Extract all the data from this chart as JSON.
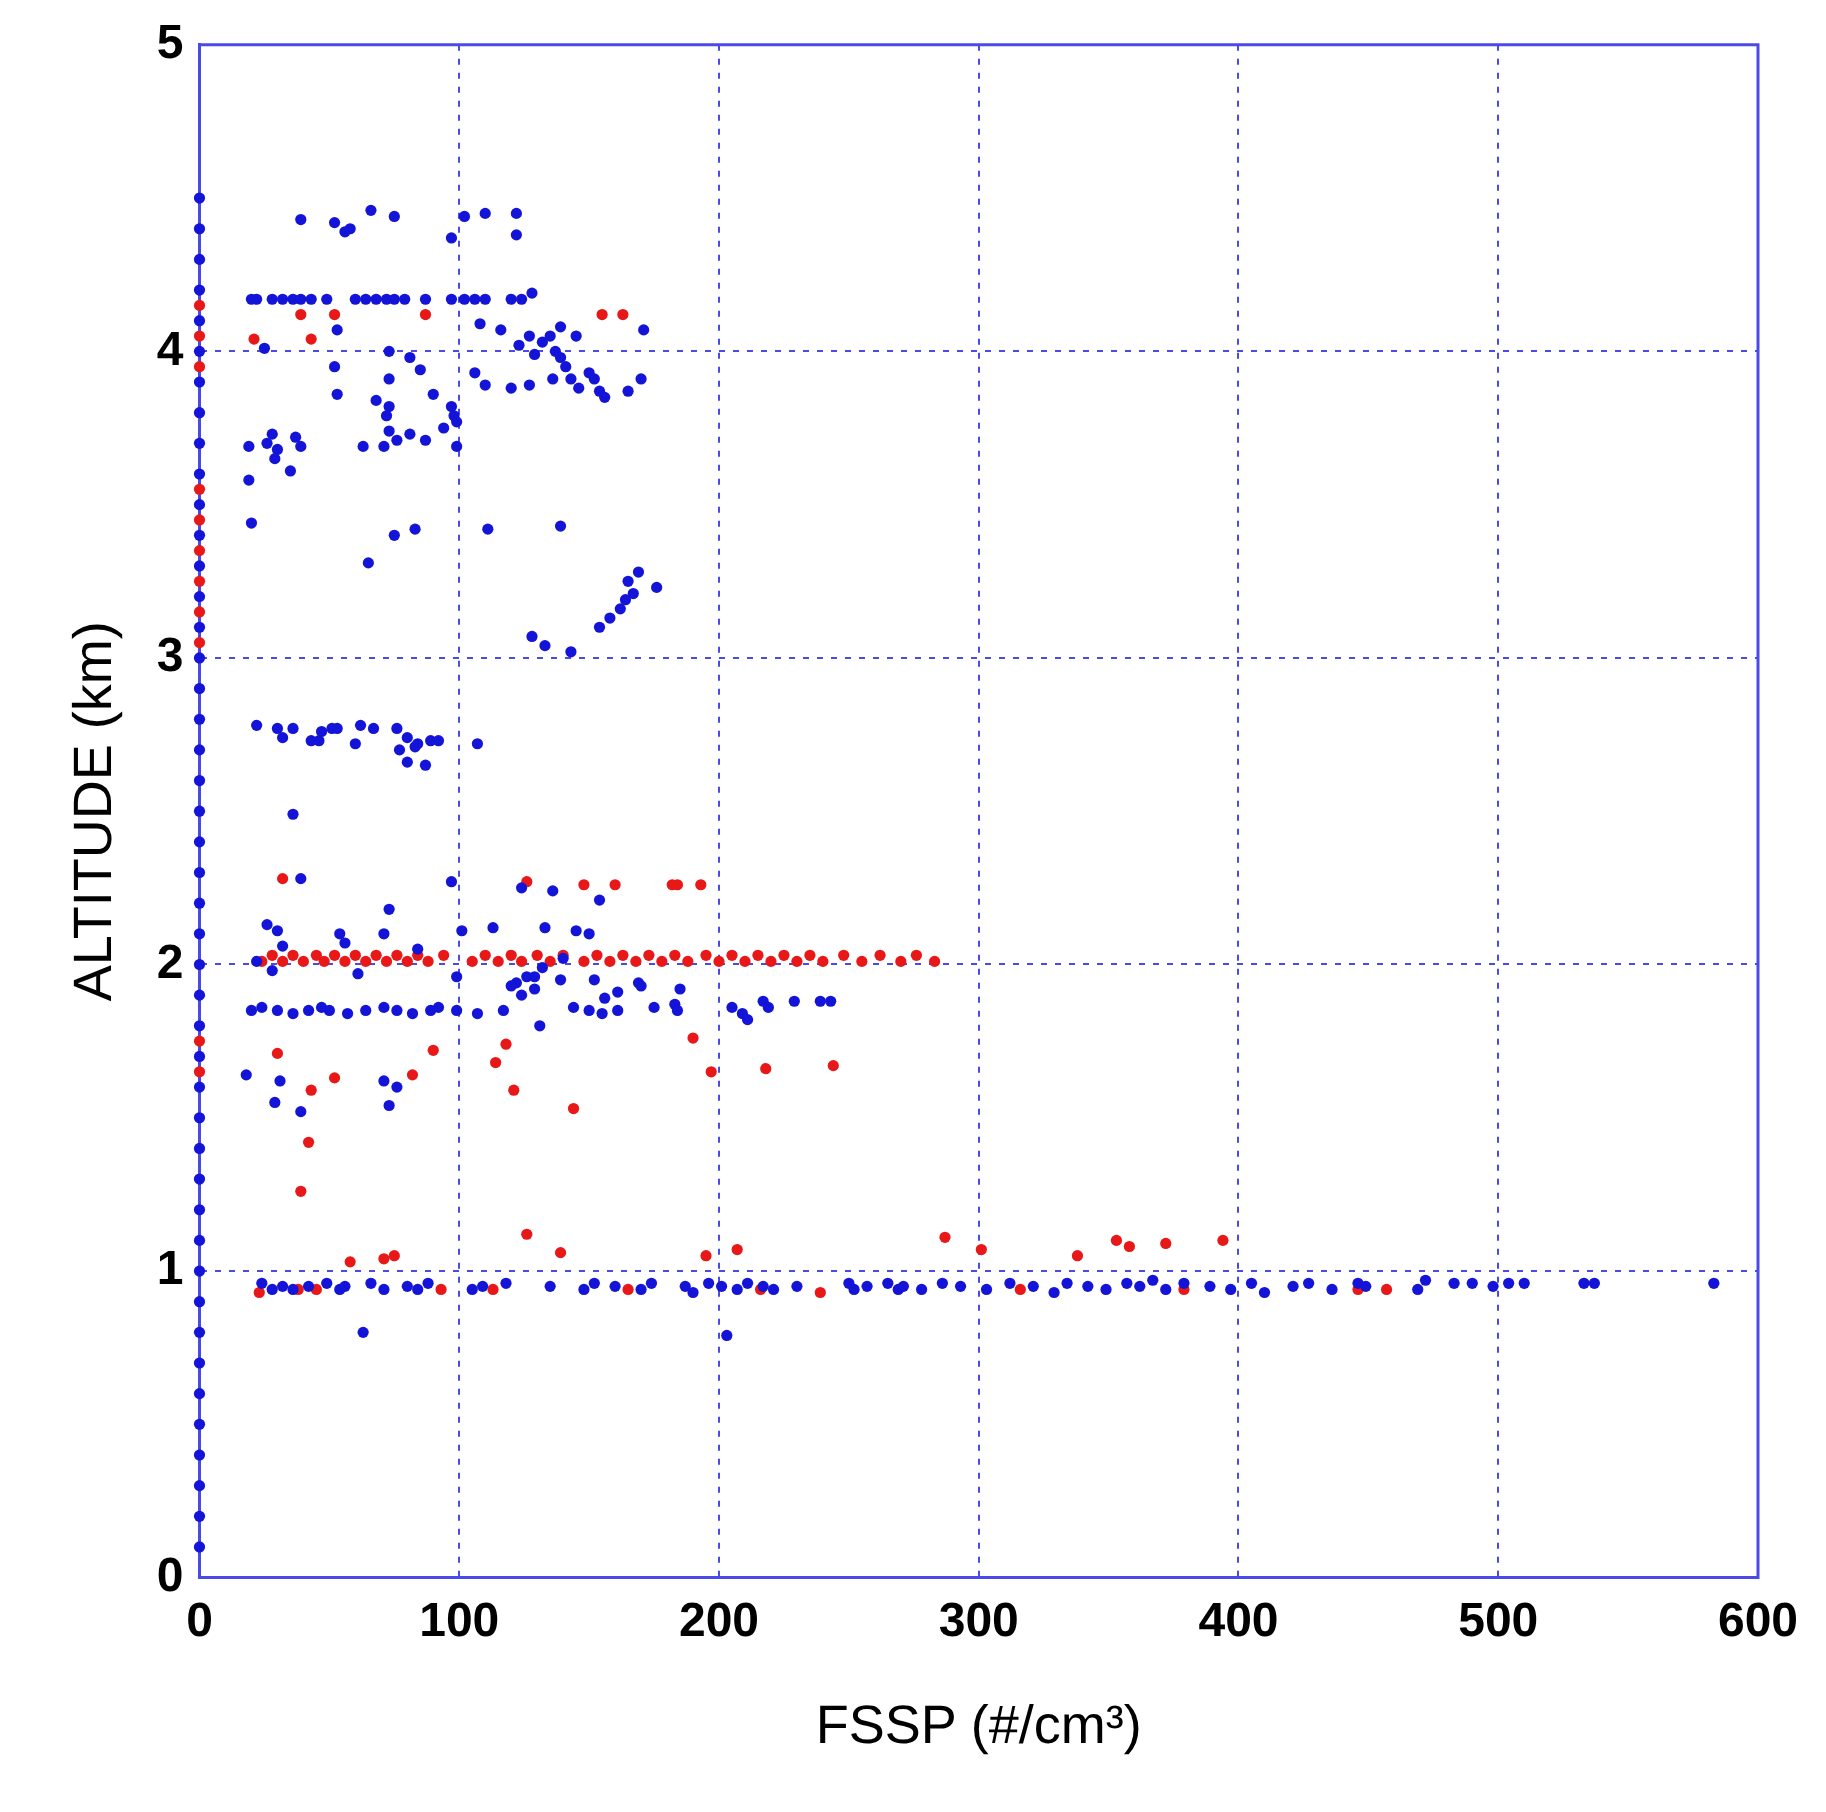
{
  "chart_data": {
    "type": "scatter",
    "xlabel": "FSSP (#/cm³)",
    "ylabel": "ALTITUDE (km)",
    "xlim": [
      0,
      600
    ],
    "xticks": [
      0,
      100,
      200,
      300,
      400,
      500,
      600
    ],
    "ylim": [
      0,
      5
    ],
    "yticks": [
      0,
      1,
      2,
      3,
      4,
      5
    ],
    "grid": true,
    "legend": false,
    "marker": "circle",
    "series": [
      {
        "color": "#1414d8",
        "x": [
          0,
          0,
          0,
          0,
          0,
          0,
          0,
          0,
          0,
          0,
          0,
          0,
          0,
          0,
          0,
          0,
          0,
          0,
          0,
          0,
          0,
          0,
          0,
          0,
          0,
          0,
          0,
          0,
          0,
          0,
          0,
          0,
          0,
          0,
          0,
          0,
          0,
          0,
          0,
          0,
          0,
          0,
          0,
          0,
          0,
          39,
          52,
          56,
          58,
          66,
          75,
          97,
          102,
          110,
          122,
          122,
          20,
          22,
          28,
          32,
          36,
          39,
          43,
          49,
          60,
          64,
          68,
          72,
          75,
          79,
          87,
          97,
          102,
          106,
          110,
          120,
          124,
          128,
          25,
          53,
          73,
          52,
          81,
          85,
          73,
          53,
          68,
          73,
          72,
          90,
          97,
          98,
          99,
          94,
          73,
          76,
          81,
          87,
          99,
          63,
          71,
          106,
          110,
          108,
          116,
          120,
          123,
          127,
          129,
          132,
          135,
          139,
          145,
          137,
          139,
          141,
          136,
          143,
          146,
          150,
          152,
          154,
          156,
          165,
          170,
          171,
          127,
          19,
          26,
          28,
          30,
          29,
          37,
          39,
          35,
          19,
          20,
          75,
          83,
          65,
          111,
          139,
          154,
          158,
          162,
          164,
          167,
          165,
          169,
          176,
          128,
          133,
          143,
          22,
          30,
          32,
          36,
          43,
          46,
          47,
          51,
          53,
          60,
          62,
          67,
          76,
          80,
          77,
          80,
          83,
          84,
          87,
          89,
          92,
          107,
          36,
          39,
          97,
          124,
          136,
          154,
          26,
          30,
          73,
          54,
          56,
          71,
          101,
          113,
          133,
          145,
          150,
          32,
          84,
          22,
          28,
          61,
          99,
          122,
          126,
          129,
          132,
          140,
          129,
          139,
          124,
          120,
          152,
          161,
          169,
          170,
          185,
          183,
          156,
          131,
          20,
          24,
          30,
          36,
          42,
          47,
          50,
          57,
          64,
          71,
          76,
          82,
          89,
          92,
          99,
          107,
          117,
          144,
          150,
          155,
          161,
          175,
          184,
          205,
          209,
          211,
          217,
          219,
          229,
          239,
          243,
          18,
          31,
          29,
          39,
          71,
          76,
          73,
          24,
          28,
          32,
          36,
          42,
          49,
          54,
          56,
          66,
          71,
          80,
          84,
          88,
          105,
          109,
          118,
          135,
          148,
          152,
          160,
          170,
          174,
          187,
          190,
          196,
          201,
          207,
          211,
          217,
          221,
          230,
          250,
          252,
          257,
          265,
          269,
          271,
          278,
          286,
          293,
          303,
          312,
          321,
          329,
          334,
          342,
          349,
          357,
          362,
          367,
          372,
          379,
          389,
          397,
          405,
          410,
          421,
          427,
          436,
          446,
          449,
          469,
          472,
          483,
          490,
          498,
          504,
          510,
          533,
          537,
          583,
          63,
          203
        ],
        "values": [
          0.1,
          0.2,
          0.3,
          0.4,
          0.5,
          0.6,
          0.7,
          0.8,
          0.9,
          1.0,
          1.1,
          1.2,
          1.3,
          1.4,
          1.5,
          1.6,
          1.7,
          1.8,
          1.9,
          2.0,
          2.1,
          2.2,
          2.3,
          2.4,
          2.5,
          2.6,
          2.7,
          2.8,
          2.9,
          3.0,
          3.1,
          3.2,
          3.3,
          3.4,
          3.5,
          3.6,
          3.7,
          3.8,
          3.9,
          4.0,
          4.1,
          4.2,
          4.3,
          4.4,
          4.5,
          4.43,
          4.42,
          4.39,
          4.4,
          4.46,
          4.44,
          4.37,
          4.44,
          4.45,
          4.45,
          4.38,
          4.17,
          4.17,
          4.17,
          4.17,
          4.17,
          4.17,
          4.17,
          4.17,
          4.17,
          4.17,
          4.17,
          4.17,
          4.17,
          4.17,
          4.17,
          4.17,
          4.17,
          4.17,
          4.17,
          4.17,
          4.17,
          4.19,
          4.01,
          4.07,
          4.0,
          3.95,
          3.98,
          3.94,
          3.91,
          3.86,
          3.84,
          3.82,
          3.79,
          3.86,
          3.82,
          3.79,
          3.77,
          3.75,
          3.74,
          3.71,
          3.73,
          3.71,
          3.69,
          3.69,
          3.69,
          3.93,
          3.89,
          4.09,
          4.07,
          3.88,
          4.02,
          4.05,
          3.99,
          4.03,
          4.05,
          4.08,
          4.05,
          4.0,
          3.98,
          3.95,
          3.91,
          3.91,
          3.88,
          3.93,
          3.91,
          3.87,
          3.85,
          3.87,
          3.91,
          4.07,
          3.89,
          3.69,
          3.7,
          3.73,
          3.68,
          3.65,
          3.72,
          3.69,
          3.61,
          3.58,
          3.44,
          3.4,
          3.42,
          3.31,
          3.42,
          3.43,
          3.1,
          3.13,
          3.16,
          3.19,
          3.21,
          3.25,
          3.28,
          3.23,
          3.07,
          3.04,
          3.02,
          2.78,
          2.77,
          2.74,
          2.77,
          2.73,
          2.73,
          2.76,
          2.77,
          2.77,
          2.72,
          2.78,
          2.77,
          2.77,
          2.74,
          2.7,
          2.66,
          2.71,
          2.72,
          2.65,
          2.73,
          2.73,
          2.72,
          2.49,
          2.28,
          2.27,
          2.25,
          2.24,
          2.21,
          2.13,
          2.11,
          2.18,
          2.1,
          2.07,
          2.1,
          2.11,
          2.12,
          2.12,
          2.11,
          2.1,
          2.06,
          2.05,
          2.01,
          1.98,
          1.97,
          1.96,
          1.94,
          1.96,
          1.96,
          1.99,
          2.02,
          1.92,
          1.95,
          1.9,
          1.93,
          1.95,
          1.91,
          1.94,
          1.93,
          1.92,
          1.87,
          1.89,
          1.8,
          1.85,
          1.86,
          1.85,
          1.84,
          1.85,
          1.86,
          1.85,
          1.84,
          1.85,
          1.86,
          1.85,
          1.84,
          1.85,
          1.86,
          1.85,
          1.84,
          1.85,
          1.86,
          1.85,
          1.84,
          1.85,
          1.86,
          1.85,
          1.86,
          1.84,
          1.82,
          1.88,
          1.86,
          1.88,
          1.88,
          1.88,
          1.64,
          1.62,
          1.55,
          1.52,
          1.62,
          1.6,
          1.54,
          0.96,
          0.94,
          0.95,
          0.94,
          0.95,
          0.96,
          0.94,
          0.95,
          0.96,
          0.94,
          0.95,
          0.94,
          0.96,
          0.94,
          0.95,
          0.96,
          0.95,
          0.94,
          0.96,
          0.95,
          0.94,
          0.96,
          0.95,
          0.93,
          0.96,
          0.95,
          0.94,
          0.96,
          0.95,
          0.94,
          0.95,
          0.96,
          0.94,
          0.95,
          0.96,
          0.94,
          0.95,
          0.94,
          0.96,
          0.95,
          0.94,
          0.96,
          0.95,
          0.93,
          0.96,
          0.95,
          0.94,
          0.96,
          0.95,
          0.97,
          0.94,
          0.96,
          0.95,
          0.94,
          0.96,
          0.93,
          0.95,
          0.96,
          0.94,
          0.96,
          0.95,
          0.94,
          0.97,
          0.96,
          0.96,
          0.95,
          0.96,
          0.96,
          0.96,
          0.96,
          0.96,
          0.8,
          0.79
        ]
      },
      {
        "color": "#e81818",
        "x": [
          0,
          0,
          0,
          0,
          0,
          0,
          0,
          0,
          0,
          0,
          0,
          39,
          52,
          87,
          155,
          163,
          21,
          43,
          32,
          126,
          148,
          160,
          182,
          184,
          193,
          24,
          28,
          32,
          36,
          40,
          45,
          48,
          52,
          56,
          60,
          64,
          68,
          72,
          76,
          80,
          84,
          88,
          94,
          105,
          110,
          115,
          120,
          124,
          130,
          135,
          140,
          148,
          153,
          158,
          163,
          168,
          173,
          178,
          183,
          188,
          195,
          200,
          205,
          210,
          215,
          220,
          225,
          230,
          235,
          240,
          248,
          255,
          262,
          270,
          276,
          283,
          30,
          90,
          82,
          52,
          43,
          42,
          39,
          114,
          118,
          121,
          144,
          126,
          190,
          197,
          218,
          244,
          23,
          38,
          45,
          58,
          71,
          75,
          93,
          113,
          139,
          165,
          195,
          207,
          216,
          239,
          287,
          301,
          316,
          338,
          353,
          358,
          372,
          379,
          394,
          446,
          457
        ],
        "values": [
          1.65,
          1.75,
          3.05,
          3.15,
          3.25,
          3.35,
          3.45,
          3.55,
          3.95,
          4.05,
          4.15,
          4.12,
          4.12,
          4.12,
          4.12,
          4.12,
          4.04,
          4.04,
          2.28,
          2.27,
          2.26,
          2.26,
          2.26,
          2.26,
          2.26,
          2.01,
          2.03,
          2.01,
          2.03,
          2.01,
          2.03,
          2.01,
          2.03,
          2.01,
          2.03,
          2.01,
          2.03,
          2.01,
          2.03,
          2.01,
          2.03,
          2.01,
          2.03,
          2.01,
          2.03,
          2.01,
          2.03,
          2.01,
          2.03,
          2.01,
          2.03,
          2.01,
          2.03,
          2.01,
          2.03,
          2.01,
          2.03,
          2.01,
          2.03,
          2.01,
          2.03,
          2.01,
          2.03,
          2.01,
          2.03,
          2.01,
          2.03,
          2.01,
          2.03,
          2.01,
          2.03,
          2.01,
          2.03,
          2.01,
          2.03,
          2.01,
          1.71,
          1.72,
          1.64,
          1.63,
          1.59,
          1.42,
          1.26,
          1.68,
          1.74,
          1.59,
          1.53,
          1.12,
          1.76,
          1.65,
          1.66,
          1.67,
          0.93,
          0.94,
          0.94,
          1.03,
          1.04,
          1.05,
          0.94,
          0.94,
          1.06,
          0.94,
          1.05,
          1.07,
          0.94,
          0.93,
          1.11,
          1.07,
          0.94,
          1.05,
          1.1,
          1.08,
          1.09,
          0.94,
          1.1,
          0.94,
          0.94
        ]
      }
    ]
  }
}
